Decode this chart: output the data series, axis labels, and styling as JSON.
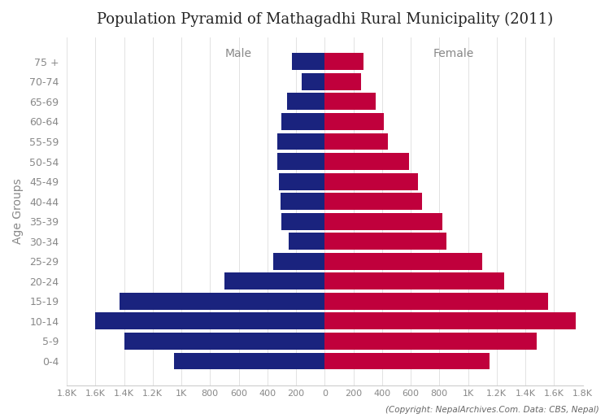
{
  "title": "Population Pyramid of Mathagadhi Rural Municipality (2011)",
  "age_groups": [
    "0-4",
    "5-9",
    "10-14",
    "15-19",
    "20-24",
    "25-29",
    "30-34",
    "35-39",
    "40-44",
    "45-49",
    "50-54",
    "55-59",
    "60-64",
    "65-69",
    "70-74",
    "75 +"
  ],
  "male": [
    1050,
    1400,
    1600,
    1430,
    700,
    360,
    250,
    300,
    310,
    320,
    330,
    330,
    300,
    265,
    160,
    230
  ],
  "female": [
    1150,
    1480,
    1750,
    1560,
    1250,
    1100,
    850,
    820,
    680,
    650,
    590,
    440,
    410,
    355,
    255,
    270
  ],
  "male_color": "#1a237e",
  "female_color": "#c0003c",
  "xlabel_left": "Male",
  "xlabel_right": "Female",
  "ylabel": "Age Groups",
  "background_color": "#ffffff",
  "copyright": "(Copyright: NepalArchives.Com. Data: CBS, Nepal)",
  "xlim": 1800,
  "tick_positions": [
    -1800,
    -1600,
    -1400,
    -1200,
    -1000,
    -800,
    -600,
    -400,
    -200,
    0,
    200,
    400,
    600,
    800,
    1000,
    1200,
    1400,
    1600,
    1800
  ],
  "tick_labels": [
    "1.8K",
    "1.6K",
    "1.4K",
    "1.2K",
    "1K",
    "800",
    "600",
    "400",
    "200",
    "0",
    "200",
    "400",
    "600",
    "800",
    "1K",
    "1.2K",
    "1.4K",
    "1.6K",
    "1.8K"
  ]
}
